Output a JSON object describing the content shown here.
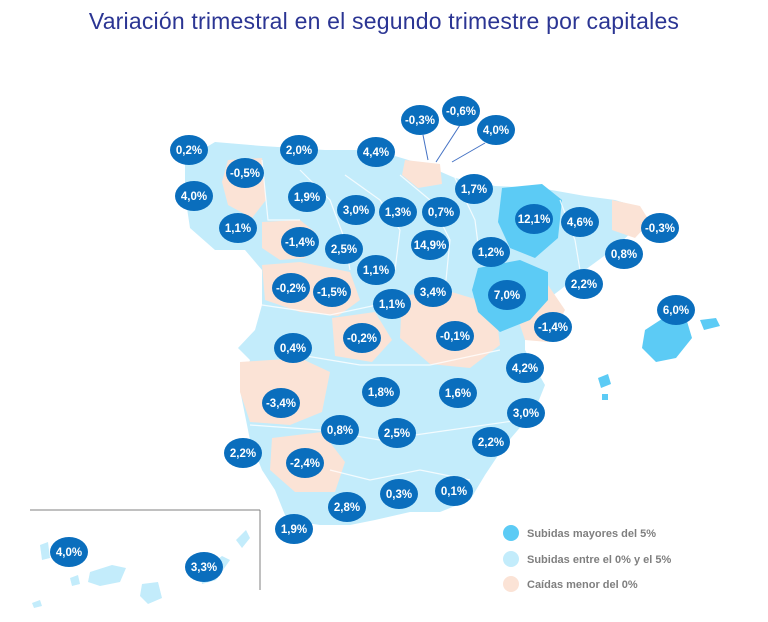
{
  "title": "Variación trimestral en el segundo trimestre por capitales",
  "colors": {
    "bubble": "#0a6ebd",
    "rise_over_5": "#5ccbf5",
    "rise_0_5": "#c3ecfb",
    "fall": "#fbe3d6",
    "title": "#2b3593",
    "leader_line": "#4472c4"
  },
  "legend": {
    "rise_over_5": "Subidas mayores del 5%",
    "rise_0_5": "Subidas entre el 0% y el 5%",
    "fall": "Caídas menor del 0%"
  },
  "values": {
    "a_coruna": "0,2%",
    "lugo": "-0,5%",
    "pontevedra": "4,0%",
    "ourense": "1,1%",
    "oviedo": "2,0%",
    "santander": "4,4%",
    "bilbao": "-0,3%",
    "san_sebastian": "-0,6%",
    "vitoria": "4,0%",
    "leon": "1,9%",
    "palencia": "3,0%",
    "burgos": "1,3%",
    "logrono": "0,7%",
    "pamplona": "1,7%",
    "huesca": "12,1%",
    "lleida": "4,6%",
    "girona": "-0,3%",
    "barcelona": "0,8%",
    "zamora": "-1,4%",
    "valladolid": "2,5%",
    "soria": "14,9%",
    "zaragoza": "1,2%",
    "segovia": "1,1%",
    "salamanca": "-0,2%",
    "avila": "-1,5%",
    "madrid": "1,1%",
    "guadalajara": "3,4%",
    "teruel": "7,0%",
    "tarragona": "2,2%",
    "castellon": "-1,4%",
    "palma": "6,0%",
    "caceres": "0,4%",
    "toledo": "-0,2%",
    "cuenca": "-0,1%",
    "valencia": "4,2%",
    "badajoz": "-3,4%",
    "ciudad_real": "1,8%",
    "albacete": "1,6%",
    "alicante": "3,0%",
    "cordoba": "0,8%",
    "jaen": "2,5%",
    "murcia": "2,2%",
    "huelva": "2,2%",
    "sevilla": "-2,4%",
    "cadiz": "1,9%",
    "malaga": "2,8%",
    "granada": "0,3%",
    "almeria": "0,1%",
    "santa_cruz_tenerife": "4,0%",
    "las_palmas": "3,3%"
  }
}
